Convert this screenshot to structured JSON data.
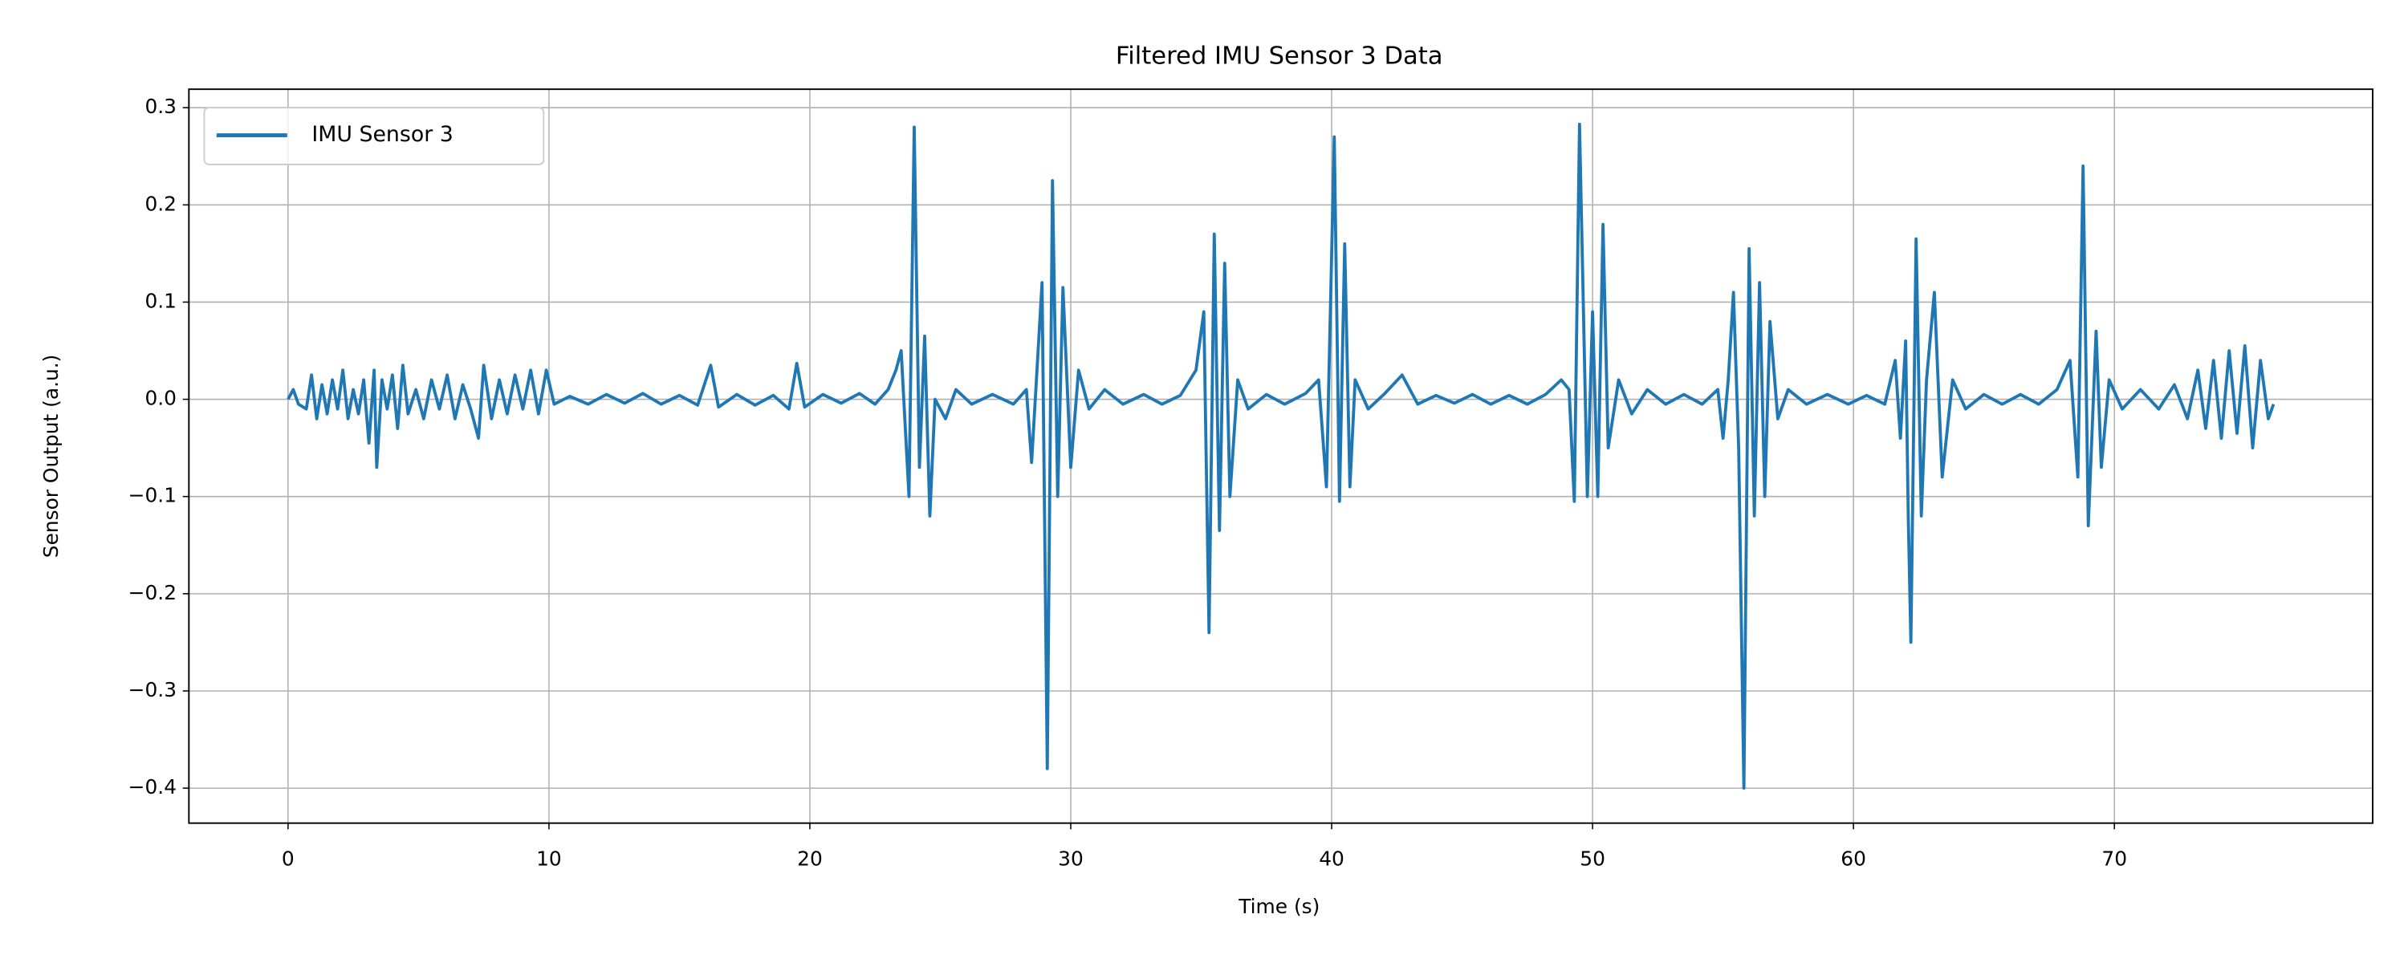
{
  "chart_data": {
    "type": "line",
    "title": "Filtered IMU Sensor 3 Data",
    "x_label": "Time (s)",
    "y_label": "Sensor Output (a.u.)",
    "x": [
      0,
      0.2,
      0.4,
      0.7,
      0.9,
      1.1,
      1.3,
      1.5,
      1.7,
      1.9,
      2.1,
      2.3,
      2.5,
      2.7,
      2.9,
      3.1,
      3.3,
      3.4,
      3.6,
      3.8,
      4.0,
      4.2,
      4.4,
      4.6,
      4.9,
      5.2,
      5.5,
      5.8,
      6.1,
      6.4,
      6.7,
      7.0,
      7.3,
      7.5,
      7.8,
      8.1,
      8.4,
      8.7,
      9.0,
      9.3,
      9.6,
      9.9,
      10.2,
      10.8,
      11.5,
      12.2,
      12.9,
      13.6,
      14.3,
      15.0,
      15.7,
      16.2,
      16.5,
      17.2,
      17.9,
      18.6,
      19.2,
      19.5,
      19.8,
      20.5,
      21.2,
      21.9,
      22.5,
      23.0,
      23.3,
      23.5,
      23.8,
      24.0,
      24.2,
      24.4,
      24.6,
      24.8,
      25.2,
      25.6,
      26.2,
      27.0,
      27.8,
      28.3,
      28.5,
      28.9,
      29.1,
      29.3,
      29.5,
      29.7,
      30.0,
      30.3,
      30.7,
      31.3,
      32.0,
      32.8,
      33.5,
      34.2,
      34.8,
      35.1,
      35.3,
      35.5,
      35.7,
      35.9,
      36.1,
      36.4,
      36.8,
      37.5,
      38.2,
      39.0,
      39.5,
      39.8,
      40.1,
      40.3,
      40.5,
      40.7,
      40.9,
      41.4,
      42.0,
      42.7,
      43.3,
      44.0,
      44.7,
      45.4,
      46.1,
      46.8,
      47.5,
      48.2,
      48.8,
      49.1,
      49.3,
      49.5,
      49.8,
      50.0,
      50.2,
      50.4,
      50.6,
      51.0,
      51.5,
      52.1,
      52.8,
      53.5,
      54.2,
      54.8,
      55.0,
      55.2,
      55.4,
      55.6,
      55.8,
      56.0,
      56.2,
      56.4,
      56.6,
      56.8,
      57.1,
      57.5,
      58.2,
      59.0,
      59.8,
      60.5,
      61.2,
      61.6,
      61.8,
      62.0,
      62.1,
      62.2,
      62.4,
      62.6,
      62.8,
      63.1,
      63.4,
      63.8,
      64.3,
      65.0,
      65.7,
      66.4,
      67.1,
      67.8,
      68.3,
      68.6,
      68.8,
      69.0,
      69.3,
      69.5,
      69.8,
      70.3,
      71.0,
      71.7,
      72.3,
      72.8,
      73.2,
      73.5,
      73.8,
      74.1,
      74.4,
      74.7,
      75.0,
      75.3,
      75.6,
      75.9,
      76.1
    ],
    "series": [
      {
        "name": "IMU Sensor 3",
        "color": "#1f77b4",
        "values": [
          0,
          0.01,
          -0.005,
          -0.01,
          0.025,
          -0.02,
          0.015,
          -0.015,
          0.02,
          -0.01,
          0.03,
          -0.02,
          0.01,
          -0.015,
          0.02,
          -0.045,
          0.03,
          -0.07,
          0.02,
          -0.01,
          0.025,
          -0.03,
          0.035,
          -0.015,
          0.01,
          -0.02,
          0.02,
          -0.01,
          0.025,
          -0.02,
          0.015,
          -0.01,
          -0.04,
          0.035,
          -0.02,
          0.02,
          -0.015,
          0.025,
          -0.01,
          0.03,
          -0.015,
          0.03,
          -0.005,
          0.003,
          -0.005,
          0.005,
          -0.004,
          0.006,
          -0.005,
          0.004,
          -0.006,
          0.035,
          -0.008,
          0.005,
          -0.006,
          0.004,
          -0.01,
          0.037,
          -0.008,
          0.005,
          -0.004,
          0.006,
          -0.005,
          0.01,
          0.03,
          0.05,
          -0.1,
          0.28,
          -0.07,
          0.065,
          -0.12,
          0.0,
          -0.02,
          0.01,
          -0.005,
          0.005,
          -0.005,
          0.01,
          -0.065,
          0.12,
          -0.38,
          0.225,
          -0.1,
          0.115,
          -0.07,
          0.03,
          -0.01,
          0.01,
          -0.005,
          0.005,
          -0.005,
          0.004,
          0.03,
          0.09,
          -0.24,
          0.17,
          -0.135,
          0.14,
          -0.1,
          0.02,
          -0.01,
          0.005,
          -0.005,
          0.006,
          0.02,
          -0.09,
          0.27,
          -0.105,
          0.16,
          -0.09,
          0.02,
          -0.01,
          0.005,
          0.025,
          -0.005,
          0.004,
          -0.004,
          0.005,
          -0.005,
          0.004,
          -0.005,
          0.005,
          0.02,
          0.01,
          -0.105,
          0.283,
          -0.1,
          0.09,
          -0.1,
          0.18,
          -0.05,
          0.02,
          -0.015,
          0.01,
          -0.005,
          0.005,
          -0.005,
          0.01,
          -0.04,
          0.02,
          0.11,
          -0.05,
          -0.4,
          0.155,
          -0.12,
          0.12,
          -0.1,
          0.08,
          -0.02,
          0.01,
          -0.005,
          0.005,
          -0.005,
          0.004,
          -0.005,
          0.04,
          -0.04,
          0.06,
          -0.12,
          -0.25,
          0.165,
          -0.12,
          0.02,
          0.11,
          -0.08,
          0.02,
          -0.01,
          0.005,
          -0.005,
          0.005,
          -0.005,
          0.01,
          0.04,
          -0.08,
          0.24,
          -0.13,
          0.07,
          -0.07,
          0.02,
          -0.01,
          0.01,
          -0.01,
          0.015,
          -0.02,
          0.03,
          -0.03,
          0.04,
          -0.04,
          0.05,
          -0.035,
          0.055,
          -0.05,
          0.04,
          -0.02,
          -0.005
        ]
      }
    ],
    "xlim": [
      -3.8,
      79.9
    ],
    "ylim": [
      -0.436,
      0.319
    ],
    "xticks": [
      0,
      10,
      20,
      30,
      40,
      50,
      60,
      70
    ],
    "yticks": [
      {
        "value": -0.4,
        "label": "−0.4"
      },
      {
        "value": -0.3,
        "label": "−0.3"
      },
      {
        "value": -0.2,
        "label": "−0.2"
      },
      {
        "value": -0.1,
        "label": "−0.1"
      },
      {
        "value": 0,
        "label": "0.0"
      },
      0.1,
      0.2,
      0.3
    ],
    "grid": true,
    "legend": "upper-left"
  }
}
